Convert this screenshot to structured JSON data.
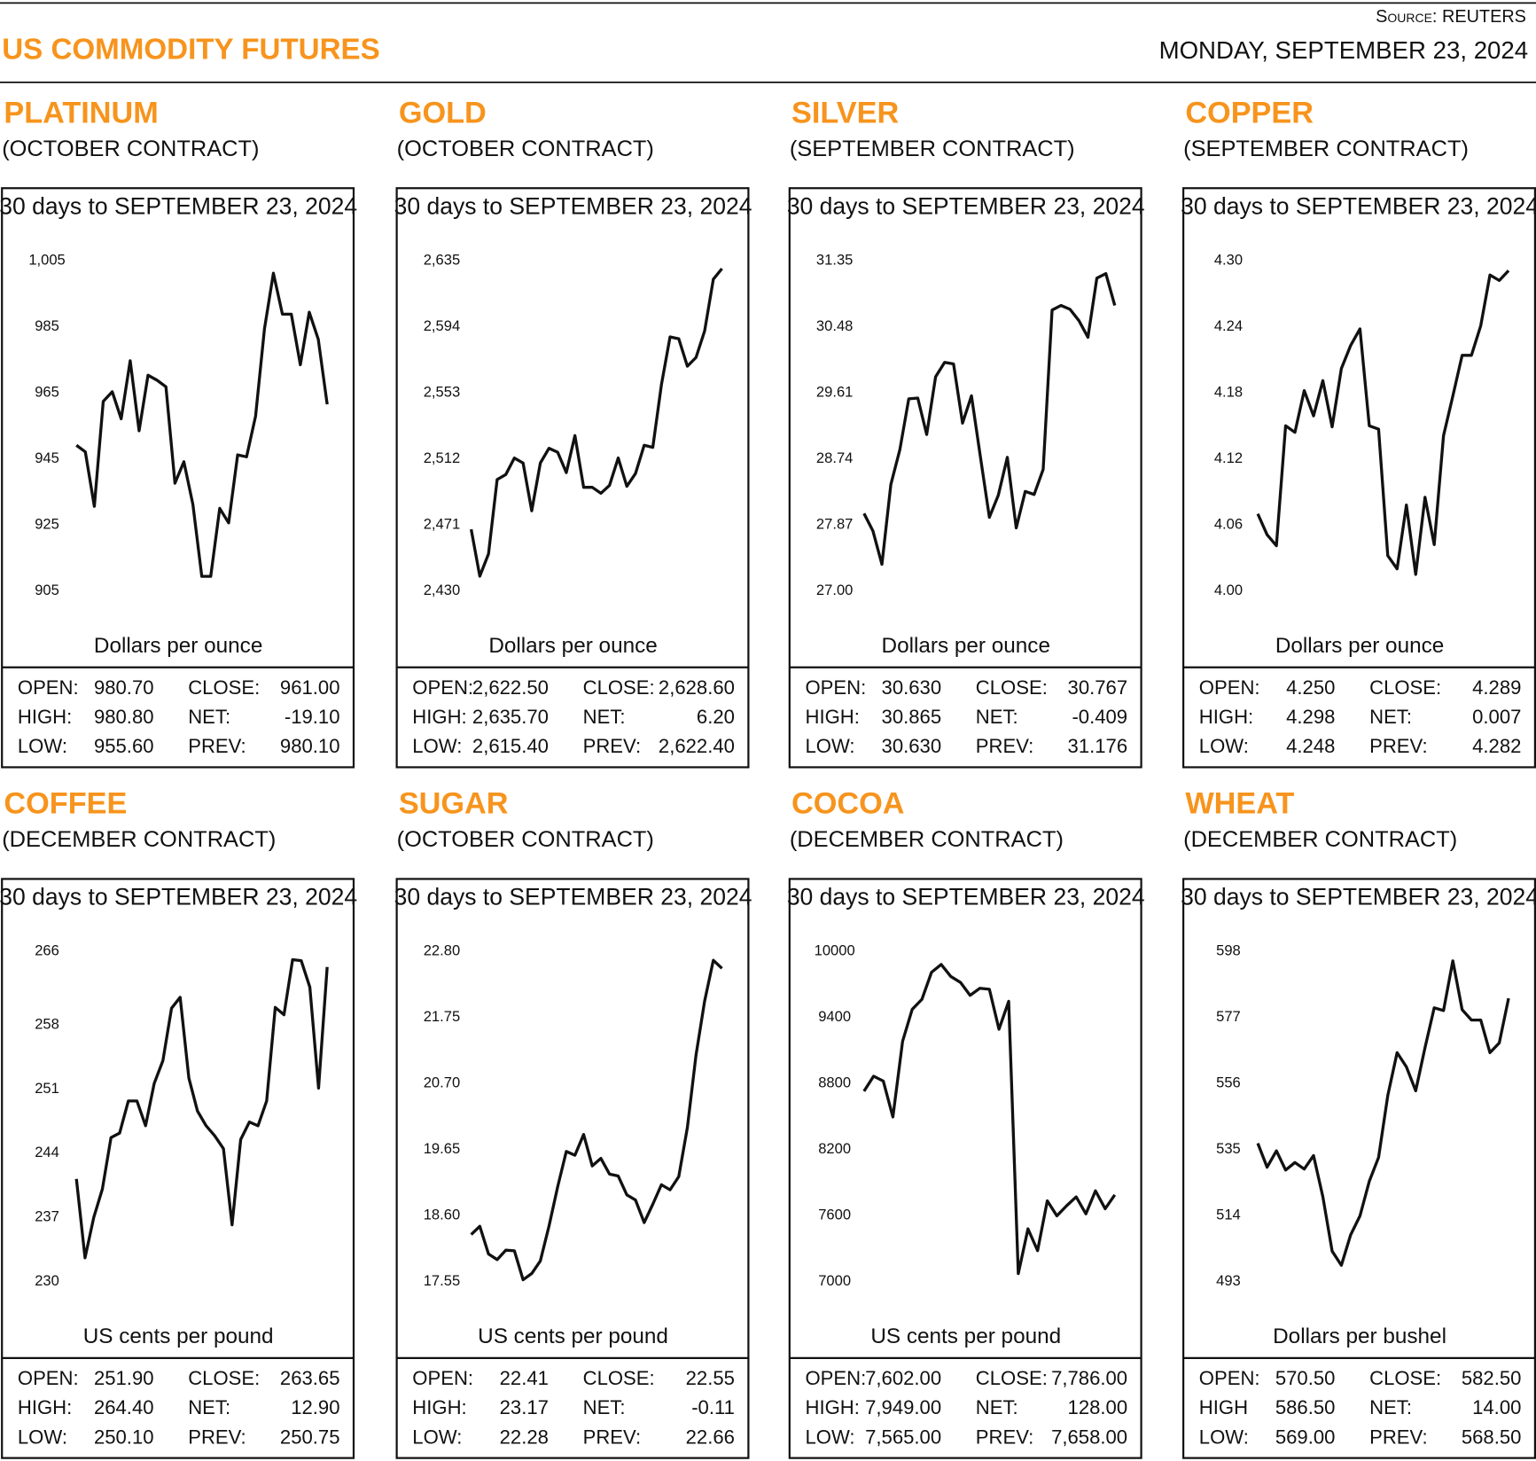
{
  "header": {
    "title": "US COMMODITY FUTURES",
    "source": "Source: REUTERS",
    "date": "MONDAY, SEPTEMBER 23, 2024"
  },
  "chart_data": [
    {
      "type": "line",
      "title": "PLATINUM",
      "subtitle": "(OCTOBER CONTRACT)",
      "period": "30 days to SEPTEMBER 23, 2024",
      "ylabel": "Dollars per ounce",
      "color": "#111111",
      "ylim": [
        905,
        1005
      ],
      "yticks": [
        905,
        925,
        945,
        965,
        985,
        {
          "value": 1005,
          "label": "1,005"
        }
      ],
      "values": [
        949.1,
        947.1,
        930.6,
        962.4,
        965.3,
        957.1,
        974.7,
        953.5,
        970.3,
        968.8,
        966.8,
        937.6,
        944.1,
        931.2,
        909.4,
        909.4,
        930.0,
        925.6,
        946.2,
        945.6,
        957.9,
        984.4,
        1001.2,
        988.8,
        988.8,
        973.5,
        989.4,
        981.2,
        961.5
      ],
      "stats": [
        [
          "OPEN:",
          "980.70",
          "CLOSE:",
          "961.00"
        ],
        [
          "HIGH:",
          "980.80",
          "NET:",
          "-19.10"
        ],
        [
          "LOW:",
          "955.60",
          "PREV:",
          "980.10"
        ]
      ]
    },
    {
      "type": "line",
      "title": "GOLD",
      "subtitle": "(OCTOBER CONTRACT)",
      "period": "30 days to SEPTEMBER 23, 2024",
      "ylabel": "Dollars per ounce",
      "color": "#111111",
      "ylim": [
        2430,
        2635
      ],
      "yticks": [
        {
          "value": 2430,
          "label": "2,430"
        },
        {
          "value": 2471,
          "label": "2,471"
        },
        {
          "value": 2512,
          "label": "2,512"
        },
        {
          "value": 2553,
          "label": "2,553"
        },
        {
          "value": 2594,
          "label": "2,594"
        },
        {
          "value": 2635,
          "label": "2,635"
        }
      ],
      "values": [
        2468.2,
        2439.1,
        2453.0,
        2499.1,
        2502.2,
        2512.5,
        2509.4,
        2479.7,
        2509.4,
        2518.5,
        2516.1,
        2503.4,
        2526.4,
        2494.3,
        2494.3,
        2490.6,
        2495.5,
        2512.5,
        2494.9,
        2502.8,
        2520.4,
        2519.1,
        2558.0,
        2587.7,
        2586.5,
        2569.5,
        2574.9,
        2591.3,
        2623.5,
        2630.1
      ],
      "stats": [
        [
          "OPEN:",
          "2,622.50",
          "CLOSE:",
          "2,628.60"
        ],
        [
          "HIGH:",
          "2,635.70",
          "NET:",
          "6.20"
        ],
        [
          "LOW:",
          "2,615.40",
          "PREV:",
          "2,622.40"
        ]
      ]
    },
    {
      "type": "line",
      "title": "SILVER",
      "subtitle": "(SEPTEMBER CONTRACT)",
      "period": "30 days to SEPTEMBER 23, 2024",
      "ylabel": "Dollars per ounce",
      "color": "#111111",
      "ylim": [
        27,
        31.35
      ],
      "yticks": [
        {
          "value": 27,
          "label": "27.00"
        },
        27.87,
        28.74,
        29.61,
        30.48,
        31.35
      ],
      "values": [
        28.02,
        27.79,
        27.35,
        28.4,
        28.86,
        29.53,
        29.54,
        29.06,
        29.82,
        30.01,
        29.99,
        29.21,
        29.57,
        28.76,
        27.97,
        28.26,
        28.76,
        27.83,
        28.31,
        28.27,
        28.6,
        30.7,
        30.76,
        30.71,
        30.56,
        30.34,
        31.12,
        31.18,
        30.76
      ],
      "stats": [
        [
          "OPEN:",
          "30.630",
          "CLOSE:",
          "30.767"
        ],
        [
          "HIGH:",
          "30.865",
          "NET:",
          "-0.409"
        ],
        [
          "LOW:",
          "30.630",
          "PREV:",
          "31.176"
        ]
      ]
    },
    {
      "type": "line",
      "title": "COPPER",
      "subtitle": "(SEPTEMBER CONTRACT)",
      "period": "30 days to SEPTEMBER 23, 2024",
      "ylabel": "Dollars per ounce",
      "color": "#111111",
      "ylim": [
        4,
        4.3
      ],
      "yticks": [
        {
          "value": 4,
          "label": "4.00"
        },
        4.06,
        4.12,
        4.18,
        4.24,
        {
          "value": 4.3,
          "label": "4.30"
        }
      ],
      "values": [
        4.07,
        4.051,
        4.041,
        4.15,
        4.144,
        4.182,
        4.159,
        4.191,
        4.149,
        4.202,
        4.223,
        4.238,
        4.15,
        4.147,
        4.032,
        4.02,
        4.078,
        4.015,
        4.085,
        4.042,
        4.141,
        4.177,
        4.214,
        4.214,
        4.241,
        4.287,
        4.282,
        4.291
      ],
      "stats": [
        [
          "OPEN:",
          "4.250",
          "CLOSE:",
          "4.289"
        ],
        [
          "HIGH:",
          "4.298",
          "NET:",
          "0.007"
        ],
        [
          "LOW:",
          "4.248",
          "PREV:",
          "4.282"
        ]
      ]
    },
    {
      "type": "line",
      "title": "COFFEE",
      "subtitle": "(DECEMBER CONTRACT)",
      "period": "30 days to SEPTEMBER 23, 2024",
      "ylabel": "US cents per pound",
      "color": "#111111",
      "ylim": [
        230,
        266
      ],
      "yticks": [
        230,
        237,
        244,
        251,
        258,
        266
      ],
      "values": [
        241.2,
        232.6,
        237.0,
        240.1,
        245.7,
        246.2,
        249.7,
        249.7,
        247.0,
        251.6,
        254.1,
        259.8,
        261.0,
        252.2,
        248.6,
        247.0,
        245.9,
        244.5,
        236.2,
        245.5,
        247.4,
        247.0,
        249.7,
        259.9,
        259.1,
        265.1,
        265.0,
        262.1,
        251.1,
        264.3
      ],
      "stats": [
        [
          "OPEN:",
          "251.90",
          "CLOSE:",
          "263.65"
        ],
        [
          "HIGH:",
          "264.40",
          "NET:",
          "12.90"
        ],
        [
          "LOW:",
          "250.10",
          "PREV:",
          "250.75"
        ]
      ]
    },
    {
      "type": "line",
      "title": "SUGAR",
      "subtitle": "(OCTOBER CONTRACT)",
      "period": "30 days to SEPTEMBER 23, 2024",
      "ylabel": "US cents per pound",
      "color": "#111111",
      "ylim": [
        17.55,
        22.8
      ],
      "yticks": [
        17.55,
        {
          "value": 18.6,
          "label": "18.60"
        },
        19.65,
        {
          "value": 20.7,
          "label": "20.70"
        },
        21.75,
        {
          "value": 22.8,
          "label": "22.80"
        }
      ],
      "values": [
        18.3,
        18.43,
        17.99,
        17.9,
        18.05,
        18.04,
        17.58,
        17.68,
        17.88,
        18.43,
        19.06,
        19.62,
        19.56,
        19.89,
        19.39,
        19.51,
        19.26,
        19.23,
        18.93,
        18.85,
        18.49,
        18.78,
        19.09,
        19.01,
        19.22,
        20.0,
        21.15,
        22.01,
        22.66,
        22.53
      ],
      "stats": [
        [
          "OPEN:",
          "22.41",
          "CLOSE:",
          "22.55"
        ],
        [
          "HIGH:",
          "23.17",
          "NET:",
          "-0.11"
        ],
        [
          "LOW:",
          "22.28",
          "PREV:",
          "22.66"
        ]
      ]
    },
    {
      "type": "line",
      "title": "COCOA",
      "subtitle": "(DECEMBER CONTRACT)",
      "period": "30 days to SEPTEMBER 23, 2024",
      "ylabel": "US cents per pound",
      "color": "#111111",
      "ylim": [
        7000,
        10000
      ],
      "yticks": [
        7000,
        7600,
        8200,
        8800,
        9400,
        10000
      ],
      "values": [
        8731,
        8867,
        8822,
        8496,
        9184,
        9474,
        9565,
        9810,
        9882,
        9773,
        9719,
        9601,
        9665,
        9656,
        9293,
        9547,
        7073,
        7480,
        7281,
        7734,
        7598,
        7689,
        7770,
        7616,
        7825,
        7662,
        7789
      ],
      "stats": [
        [
          "OPEN:",
          "7,602.00",
          "CLOSE:",
          "7,786.00"
        ],
        [
          "HIGH:",
          "7,949.00",
          "NET:",
          "128.00"
        ],
        [
          "LOW:",
          "7,565.00",
          "PREV:",
          "7,658.00"
        ]
      ]
    },
    {
      "type": "line",
      "title": "WHEAT",
      "subtitle": "(DECEMBER CONTRACT)",
      "period": "30 days to SEPTEMBER 23, 2024",
      "ylabel": "Dollars per bushel",
      "color": "#111111",
      "ylim": [
        493,
        598
      ],
      "yticks": [
        493,
        514,
        535,
        556,
        577,
        598
      ],
      "values": [
        537.0,
        529.4,
        534.6,
        528.5,
        530.9,
        528.8,
        533.1,
        520.0,
        502.7,
        498.2,
        507.9,
        513.9,
        524.9,
        532.5,
        552.2,
        565.8,
        561.3,
        553.7,
        567.4,
        580.1,
        579.2,
        595.0,
        579.5,
        576.2,
        576.2,
        565.8,
        568.9,
        583.1
      ],
      "stats": [
        [
          "OPEN:",
          "570.50",
          "CLOSE:",
          "582.50"
        ],
        [
          "HIGH",
          "586.50",
          "NET:",
          "14.00"
        ],
        [
          "LOW:",
          "569.00",
          "PREV:",
          "568.50"
        ]
      ]
    }
  ]
}
